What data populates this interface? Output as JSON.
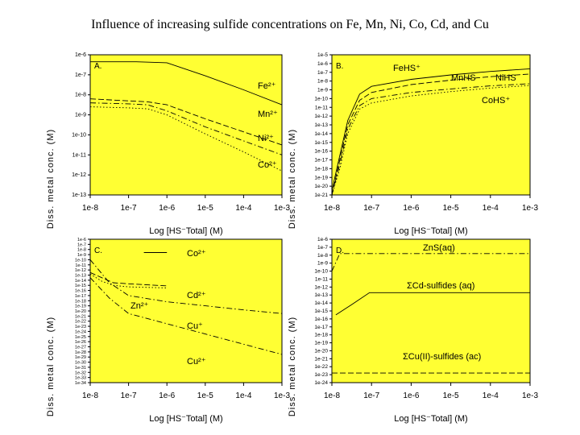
{
  "page": {
    "title": "Influence of increasing sulfide concentrations on Fe, Mn, Ni, Co, Cd, and Cu"
  },
  "colors": {
    "plot_bg": "#ffff33",
    "axis": "#000000",
    "ink": "#000000"
  },
  "chart_data": [
    {
      "id": "A",
      "type": "line",
      "panel_label": "A.",
      "xlabel": "Log [HS⁻Total]  (M)",
      "x_ticks": [
        "1e-8",
        "1e-7",
        "1e-6",
        "1e-5",
        "1e-4",
        "1e-3"
      ],
      "xlim": [
        -8,
        -3
      ],
      "y_ticks": [
        "1e-6",
        "1e-7",
        "1e-8",
        "1e-9",
        "1e-10",
        "1e-11",
        "1e-12",
        "1e-13"
      ],
      "ylim": [
        -13,
        -6
      ],
      "ylabel_glyphs": "Diss. metal conc. (M)",
      "series": [
        {
          "name": "Fe2+",
          "label": "Fe²⁺",
          "dash": "solid",
          "x": [
            -8,
            -7.4,
            -6.8,
            -6.0,
            -5,
            -4,
            -3
          ],
          "y": [
            -6.35,
            -6.35,
            -6.35,
            -6.4,
            -7.05,
            -7.75,
            -8.5
          ]
        },
        {
          "name": "Mn2+",
          "label": "Mn²⁺",
          "dash": "dash",
          "x": [
            -8,
            -7,
            -6.5,
            -6,
            -5,
            -4,
            -3
          ],
          "y": [
            -8.2,
            -8.3,
            -8.35,
            -8.5,
            -9.2,
            -9.85,
            -10.5
          ]
        },
        {
          "name": "Ni2+",
          "label": "Ni²⁺",
          "dash": "dashdot",
          "x": [
            -8,
            -7,
            -6.5,
            -6,
            -5,
            -4,
            -3
          ],
          "y": [
            -8.4,
            -8.45,
            -8.5,
            -8.8,
            -9.6,
            -10.3,
            -11.0
          ]
        },
        {
          "name": "Co2+",
          "label": "Co²⁺",
          "dash": "dot",
          "x": [
            -8,
            -7,
            -6.5,
            -6,
            -5,
            -4,
            -3
          ],
          "y": [
            -8.6,
            -8.65,
            -8.7,
            -9.0,
            -9.95,
            -10.85,
            -11.8
          ]
        }
      ]
    },
    {
      "id": "B",
      "type": "line",
      "panel_label": "B.",
      "xlabel": "Log [HS⁻Total]  (M)",
      "x_ticks": [
        "1e-8",
        "1e-7",
        "1e-6",
        "1e-5",
        "1e-4",
        "1e-3"
      ],
      "xlim": [
        -8,
        -3
      ],
      "y_ticks": [
        "1e-5",
        "1e-6",
        "1e-7",
        "1e-8",
        "1e-9",
        "1e-10",
        "1e-11",
        "1e-12",
        "1e-13",
        "1e-14",
        "1e-15",
        "1e-16",
        "1e-17",
        "1e-18",
        "1e-19",
        "1e-20",
        "1e-21"
      ],
      "ylim": [
        -21,
        -5
      ],
      "ylabel_glyphs": "Diss. metal conc. (M)",
      "series": [
        {
          "name": "FeHS+",
          "label": "FeHS⁺",
          "dash": "solid",
          "x": [
            -8,
            -7.8,
            -7.6,
            -7.3,
            -7,
            -6,
            -5,
            -4,
            -3
          ],
          "y": [
            -20.5,
            -16.5,
            -12.5,
            -9.5,
            -8.6,
            -7.8,
            -7.3,
            -6.9,
            -6.6
          ]
        },
        {
          "name": "MnHS",
          "label": "MnHS",
          "dash": "dash",
          "x": [
            -8,
            -7.8,
            -7.6,
            -7.3,
            -7,
            -6,
            -5,
            -4,
            -3
          ],
          "y": [
            -21,
            -17,
            -13,
            -10.2,
            -9.3,
            -8.4,
            -7.9,
            -7.5,
            -7.2
          ]
        },
        {
          "name": "NiHS",
          "label": "NiHS",
          "dash": "dashdot",
          "x": [
            -8,
            -7.8,
            -7.6,
            -7.3,
            -7,
            -6,
            -5,
            -4,
            -3
          ],
          "y": [
            -21,
            -17.5,
            -13.5,
            -10.8,
            -10.0,
            -9.3,
            -8.9,
            -8.55,
            -8.3
          ]
        },
        {
          "name": "CoHS+",
          "label": "CoHS⁺",
          "dash": "dot",
          "x": [
            -8,
            -7.8,
            -7.6,
            -7.3,
            -7,
            -6,
            -5,
            -4,
            -3
          ],
          "y": [
            -21,
            -18,
            -14,
            -11.2,
            -10.5,
            -9.7,
            -9.2,
            -8.8,
            -8.5
          ]
        }
      ]
    },
    {
      "id": "C",
      "type": "line",
      "panel_label": "C.",
      "xlabel": "Log [HS⁻Total]  (M)",
      "x_ticks": [
        "1e-8",
        "1e-7",
        "1e-6",
        "1e-5",
        "1e-4",
        "1e-3"
      ],
      "xlim": [
        -8,
        -3
      ],
      "y_ticks": [
        "1e-6",
        "1e-7",
        "1e-8",
        "1e-9",
        "1e-10",
        "1e-11",
        "1e-12",
        "1e-13",
        "1e-14",
        "1e-15",
        "1e-16",
        "1e-17",
        "1e-18",
        "1e-19",
        "1e-20",
        "1e-21",
        "1e-22",
        "1e-23",
        "1e-24",
        "1e-25",
        "1e-26",
        "1e-27",
        "1e-28",
        "1e-29",
        "1e-30",
        "1e-31",
        "1e-32",
        "1e-33",
        "1e-34"
      ],
      "ylim": [
        -34,
        -6
      ],
      "ylabel_glyphs": "Diss. metal conc. (M)",
      "series": [
        {
          "name": "Co2+",
          "label": "Co²⁺",
          "dash": "solid",
          "x": [
            -6.6,
            -6.0
          ],
          "y": [
            -8.6,
            -8.6
          ]
        },
        {
          "name": "Cd2+",
          "label": "Cd²⁺",
          "dash": "dash",
          "x": [
            -8,
            -7.7,
            -7.4,
            -7,
            -6.5,
            -6
          ],
          "y": [
            -12.5,
            -13.5,
            -14.5,
            -14.7,
            -14.9,
            -15.1
          ]
        },
        {
          "name": "Zn2+",
          "label": "Zn²⁺",
          "dash": "dot",
          "x": [
            -8,
            -7.7,
            -7.4,
            -7,
            -6.5,
            -6
          ],
          "y": [
            -12.8,
            -14.2,
            -15.0,
            -15.3,
            -15.4,
            -15.5
          ]
        },
        {
          "name": "Cu+",
          "label": "Cu⁺",
          "dash": "dashdot",
          "x": [
            -8,
            -7.5,
            -7,
            -6,
            -5,
            -4,
            -3
          ],
          "y": [
            -10.0,
            -14.5,
            -17.0,
            -18.2,
            -19.0,
            -19.8,
            -20.5
          ]
        },
        {
          "name": "Cu2+",
          "label": "Cu²⁺",
          "dash": "dashdot",
          "x": [
            -8,
            -7.5,
            -7,
            -6,
            -5,
            -4,
            -3
          ],
          "y": [
            -13.5,
            -17.5,
            -20.5,
            -22.5,
            -24.5,
            -26.5,
            -28.5
          ]
        }
      ]
    },
    {
      "id": "D",
      "type": "line",
      "panel_label": "D.",
      "xlabel": "Log [HS⁻Total]  (M)",
      "x_ticks": [
        "1e-8",
        "1e-7",
        "1e-6",
        "1e-5",
        "1e-4",
        "1e-3"
      ],
      "xlim": [
        -8,
        -3
      ],
      "y_ticks": [
        "1e-6",
        "1e-7",
        "1e-8",
        "1e-9",
        "1e-10",
        "1e-11",
        "1e-12",
        "1e-13",
        "1e-14",
        "1e-15",
        "1e-16",
        "1e-17",
        "1e-18",
        "1e-19",
        "1e-20",
        "1e-21",
        "1e-22",
        "1e-23",
        "1e-24"
      ],
      "ylim": [
        -24,
        -6
      ],
      "ylabel_glyphs": "Diss. metal conc. (M)",
      "series": [
        {
          "name": "ZnS(aq)",
          "label": "ZnS(aq)",
          "dash": "dashdot",
          "x": [
            -8,
            -7.8,
            -3
          ],
          "y": [
            -10,
            -7.8,
            -7.8
          ]
        },
        {
          "name": "ΣCd-sulfides (aq)",
          "label": "ΣCd-sulfides (aq)",
          "dash": "solid",
          "x": [
            -7.9,
            -7.5,
            -7.05,
            -3
          ],
          "y": [
            -15.5,
            -14.2,
            -12.7,
            -12.7
          ]
        },
        {
          "name": "ΣCu(II)-sulfides (ac)",
          "label": "ΣCu(II)-sulfides (ac)",
          "dash": "dash",
          "x": [
            -8,
            -3
          ],
          "y": [
            -22.8,
            -22.8
          ]
        }
      ]
    }
  ]
}
